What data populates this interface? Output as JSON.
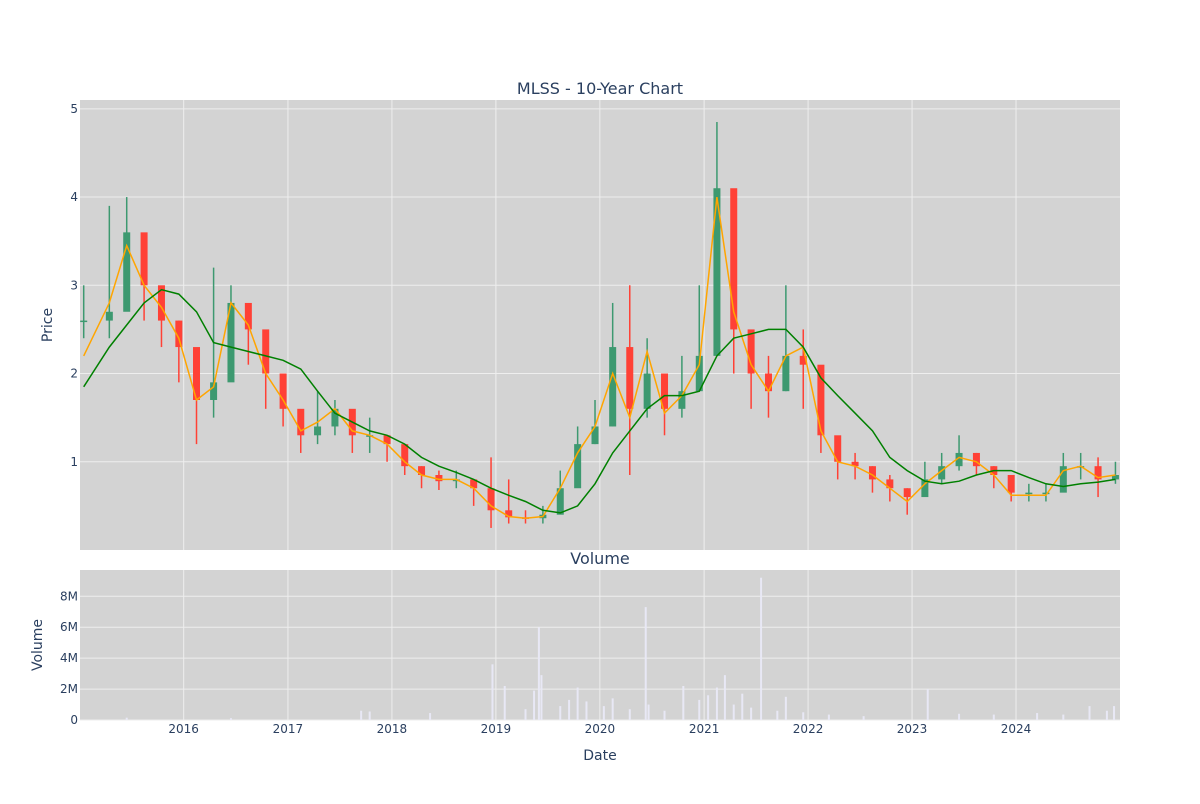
{
  "chart_data": [
    {
      "type": "candlestick",
      "title": "MLSS - 10-Year Chart",
      "ylabel": "Price",
      "xlabel": "",
      "ylim": [
        0,
        5.1
      ],
      "xlim": [
        "2015-01-02",
        "2024-12-31"
      ],
      "yticks": [
        1,
        2,
        3,
        4,
        5
      ],
      "grid": true,
      "colors": {
        "plot_bg": "#d3d3d3",
        "grid": "#eeeeee",
        "up": "#3d9970",
        "down": "#ff4136",
        "ma_short": "#ffa500",
        "ma_long": "#008000"
      },
      "series": [
        {
          "style": "candlestick",
          "x": [
            "2015-01",
            "2015-04",
            "2015-06",
            "2015-08",
            "2015-10",
            "2015-12",
            "2016-02",
            "2016-04",
            "2016-06",
            "2016-08",
            "2016-10",
            "2016-12",
            "2017-02",
            "2017-04",
            "2017-06",
            "2017-08",
            "2017-10",
            "2017-12",
            "2018-02",
            "2018-04",
            "2018-06",
            "2018-08",
            "2018-10",
            "2018-12",
            "2019-02",
            "2019-04",
            "2019-06",
            "2019-08",
            "2019-10",
            "2019-12",
            "2020-02",
            "2020-04",
            "2020-06",
            "2020-08",
            "2020-10",
            "2020-12",
            "2021-02",
            "2021-04",
            "2021-06",
            "2021-08",
            "2021-10",
            "2021-12",
            "2022-02",
            "2022-04",
            "2022-06",
            "2022-08",
            "2022-10",
            "2022-12",
            "2023-02",
            "2023-04",
            "2023-06",
            "2023-08",
            "2023-10",
            "2023-12",
            "2024-02",
            "2024-04",
            "2024-06",
            "2024-08",
            "2024-10",
            "2024-12"
          ],
          "close": [
            2.6,
            2.7,
            3.6,
            3.0,
            2.6,
            2.3,
            1.7,
            1.9,
            2.8,
            2.5,
            2.0,
            1.6,
            1.3,
            1.4,
            1.6,
            1.3,
            1.3,
            1.2,
            0.95,
            0.85,
            0.78,
            0.8,
            0.7,
            0.45,
            0.37,
            0.36,
            0.4,
            0.7,
            1.2,
            1.4,
            2.3,
            1.6,
            2.0,
            1.6,
            1.8,
            2.2,
            4.1,
            2.5,
            2.0,
            1.8,
            2.2,
            2.1,
            1.3,
            1.0,
            0.95,
            0.8,
            0.7,
            0.6,
            0.8,
            0.95,
            1.1,
            0.95,
            0.85,
            0.65,
            0.65,
            0.65,
            0.95,
            0.95,
            0.8,
            0.85
          ],
          "high": [
            3.0,
            3.9,
            4.0,
            3.3,
            2.9,
            2.6,
            2.0,
            3.2,
            3.0,
            2.7,
            2.2,
            1.9,
            1.5,
            1.8,
            1.7,
            1.5,
            1.5,
            1.3,
            1.1,
            0.95,
            0.9,
            0.9,
            0.8,
            1.05,
            0.8,
            0.45,
            0.5,
            0.9,
            1.4,
            1.7,
            2.8,
            3.0,
            2.4,
            1.9,
            2.2,
            3.0,
            4.85,
            3.0,
            2.4,
            2.2,
            3.0,
            2.5,
            1.5,
            1.2,
            1.1,
            0.95,
            0.85,
            0.7,
            1.0,
            1.1,
            1.3,
            1.1,
            0.95,
            0.75,
            0.75,
            0.75,
            1.1,
            1.1,
            1.05,
            1.0
          ],
          "low": [
            2.4,
            2.4,
            2.8,
            2.6,
            2.3,
            1.9,
            1.2,
            1.5,
            2.3,
            2.1,
            1.6,
            1.4,
            1.1,
            1.2,
            1.3,
            1.1,
            1.1,
            1.0,
            0.85,
            0.7,
            0.68,
            0.7,
            0.5,
            0.25,
            0.3,
            0.3,
            0.3,
            0.5,
            0.9,
            1.2,
            1.4,
            0.85,
            1.5,
            1.3,
            1.5,
            1.9,
            3.0,
            2.0,
            1.6,
            1.5,
            1.8,
            1.6,
            1.1,
            0.8,
            0.8,
            0.65,
            0.55,
            0.4,
            0.7,
            0.75,
            0.9,
            0.85,
            0.7,
            0.55,
            0.55,
            0.55,
            0.8,
            0.8,
            0.6,
            0.75
          ]
        },
        {
          "style": "line",
          "color": "#ffa500",
          "x": [
            "2015-01",
            "2015-04",
            "2015-06",
            "2015-08",
            "2015-10",
            "2015-12",
            "2016-02",
            "2016-04",
            "2016-06",
            "2016-08",
            "2016-10",
            "2016-12",
            "2017-02",
            "2017-04",
            "2017-06",
            "2017-08",
            "2017-10",
            "2017-12",
            "2018-02",
            "2018-04",
            "2018-06",
            "2018-08",
            "2018-10",
            "2018-12",
            "2019-02",
            "2019-04",
            "2019-06",
            "2019-08",
            "2019-10",
            "2019-12",
            "2020-02",
            "2020-04",
            "2020-06",
            "2020-08",
            "2020-10",
            "2020-12",
            "2021-02",
            "2021-04",
            "2021-06",
            "2021-08",
            "2021-10",
            "2021-12",
            "2022-02",
            "2022-04",
            "2022-06",
            "2022-08",
            "2022-10",
            "2022-12",
            "2023-02",
            "2023-04",
            "2023-06",
            "2023-08",
            "2023-10",
            "2023-12",
            "2024-02",
            "2024-04",
            "2024-06",
            "2024-08",
            "2024-10",
            "2024-12"
          ],
          "y": [
            2.2,
            2.8,
            3.45,
            3.0,
            2.75,
            2.4,
            1.7,
            1.85,
            2.8,
            2.55,
            2.0,
            1.7,
            1.35,
            1.45,
            1.6,
            1.35,
            1.3,
            1.2,
            1.0,
            0.85,
            0.8,
            0.8,
            0.7,
            0.5,
            0.38,
            0.36,
            0.38,
            0.7,
            1.1,
            1.4,
            2.0,
            1.5,
            2.25,
            1.55,
            1.75,
            2.1,
            4.0,
            2.7,
            2.1,
            1.8,
            2.2,
            2.3,
            1.35,
            1.0,
            0.95,
            0.85,
            0.7,
            0.55,
            0.75,
            0.9,
            1.05,
            1.0,
            0.85,
            0.62,
            0.62,
            0.62,
            0.9,
            0.95,
            0.82,
            0.85
          ]
        },
        {
          "style": "line",
          "color": "#008000",
          "x": [
            "2015-01",
            "2015-04",
            "2015-06",
            "2015-08",
            "2015-10",
            "2015-12",
            "2016-02",
            "2016-04",
            "2016-06",
            "2016-08",
            "2016-10",
            "2016-12",
            "2017-02",
            "2017-04",
            "2017-06",
            "2017-08",
            "2017-10",
            "2017-12",
            "2018-02",
            "2018-04",
            "2018-06",
            "2018-08",
            "2018-10",
            "2018-12",
            "2019-02",
            "2019-04",
            "2019-06",
            "2019-08",
            "2019-10",
            "2019-12",
            "2020-02",
            "2020-04",
            "2020-06",
            "2020-08",
            "2020-10",
            "2020-12",
            "2021-02",
            "2021-04",
            "2021-06",
            "2021-08",
            "2021-10",
            "2021-12",
            "2022-02",
            "2022-04",
            "2022-06",
            "2022-08",
            "2022-10",
            "2022-12",
            "2023-02",
            "2023-04",
            "2023-06",
            "2023-08",
            "2023-10",
            "2023-12",
            "2024-02",
            "2024-04",
            "2024-06",
            "2024-08",
            "2024-10",
            "2024-12"
          ],
          "y": [
            1.85,
            2.3,
            2.55,
            2.8,
            2.95,
            2.9,
            2.7,
            2.35,
            2.3,
            2.25,
            2.2,
            2.15,
            2.05,
            1.8,
            1.55,
            1.45,
            1.35,
            1.3,
            1.2,
            1.05,
            0.95,
            0.88,
            0.8,
            0.7,
            0.62,
            0.55,
            0.45,
            0.42,
            0.5,
            0.75,
            1.1,
            1.35,
            1.6,
            1.75,
            1.75,
            1.8,
            2.2,
            2.4,
            2.45,
            2.5,
            2.5,
            2.3,
            1.95,
            1.75,
            1.55,
            1.35,
            1.05,
            0.9,
            0.78,
            0.75,
            0.78,
            0.85,
            0.9,
            0.9,
            0.82,
            0.75,
            0.72,
            0.75,
            0.77,
            0.8
          ]
        }
      ]
    },
    {
      "type": "bar",
      "title": "Volume",
      "xlabel": "Date",
      "ylabel": "Volume",
      "ylim": [
        0,
        9700000
      ],
      "xlim": [
        "2015-01-02",
        "2024-12-31"
      ],
      "yticks": [
        0,
        2000000,
        4000000,
        6000000,
        8000000
      ],
      "ytick_labels": [
        "0",
        "2M",
        "4M",
        "6M",
        "8M"
      ],
      "xticks": [
        "2016-01-01",
        "2017-01-01",
        "2018-01-01",
        "2019-01-01",
        "2020-01-01",
        "2021-01-01",
        "2022-01-01",
        "2023-01-01",
        "2024-01-01"
      ],
      "xtick_labels": [
        "2016",
        "2017",
        "2018",
        "2019",
        "2020",
        "2021",
        "2022",
        "2023",
        "2024"
      ],
      "colors": {
        "plot_bg": "#d3d3d3",
        "bar": "#e8e8f5"
      },
      "x": [
        "2015-06",
        "2016-06",
        "2017-09",
        "2017-10",
        "2018-05",
        "2018-12-20",
        "2019-02-01",
        "2019-04",
        "2019-05-15",
        "2019-06-01",
        "2019-06-10",
        "2019-08",
        "2019-09",
        "2019-10-15",
        "2019-11",
        "2020-01",
        "2020-02",
        "2020-04",
        "2020-06-10",
        "2020-06-20",
        "2020-08",
        "2020-10-20",
        "2020-12",
        "2021-01",
        "2021-02",
        "2021-03",
        "2021-04",
        "2021-05",
        "2021-06",
        "2021-07-20",
        "2021-09",
        "2021-10-15",
        "2021-12",
        "2022-03",
        "2022-07",
        "2023-02-25",
        "2023-06",
        "2023-10",
        "2024-03",
        "2024-06",
        "2024-09",
        "2024-11",
        "2024-12-10"
      ],
      "values": [
        150000,
        120000,
        600000,
        550000,
        450000,
        3600000,
        2200000,
        700000,
        1900000,
        6000000,
        2900000,
        900000,
        1300000,
        2100000,
        1200000,
        900000,
        1400000,
        700000,
        7300000,
        1000000,
        600000,
        2200000,
        1300000,
        1600000,
        2100000,
        2900000,
        1000000,
        1700000,
        800000,
        9200000,
        600000,
        1500000,
        500000,
        350000,
        250000,
        2000000,
        400000,
        350000,
        450000,
        350000,
        900000,
        600000,
        900000
      ]
    }
  ]
}
